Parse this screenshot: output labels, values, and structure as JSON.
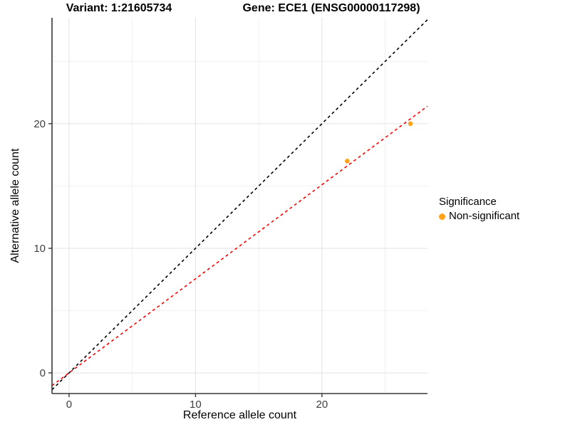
{
  "titles": {
    "variant": "Variant: 1:21605734",
    "gene": "Gene: ECE1 (ENSG00000117298)"
  },
  "axes": {
    "x_label": "Reference allele count",
    "y_label": "Alternative allele count"
  },
  "legend": {
    "title": "Significance",
    "items": [
      {
        "label": "Non-significant",
        "color": "#FFA317"
      }
    ]
  },
  "chart_data": {
    "type": "scatter",
    "title": "Variant: 1:21605734 / Gene: ECE1 (ENSG00000117298)",
    "xlabel": "Reference allele count",
    "ylabel": "Alternative allele count",
    "xlim": [
      -1.35,
      28.35
    ],
    "ylim": [
      -1.66,
      28.5
    ],
    "x_major_ticks": [
      0,
      10,
      20
    ],
    "y_major_ticks": [
      0,
      10,
      20
    ],
    "x_minor_ticks": [
      5,
      15,
      25
    ],
    "y_minor_ticks": [
      5,
      15,
      25
    ],
    "grid": true,
    "legend_position": "right",
    "point_color": "#FFA317",
    "series": [
      {
        "name": "Non-significant",
        "points": [
          {
            "x": 22,
            "y": 17
          },
          {
            "x": 27,
            "y": 20
          }
        ]
      }
    ],
    "lines": [
      {
        "name": "identity",
        "slope": 1,
        "intercept": 0,
        "color": "#000000",
        "style": "dashed"
      },
      {
        "name": "fitted-ratio",
        "slope": 0.755,
        "intercept": 0,
        "color": "#FF0000",
        "style": "dashed"
      }
    ]
  }
}
